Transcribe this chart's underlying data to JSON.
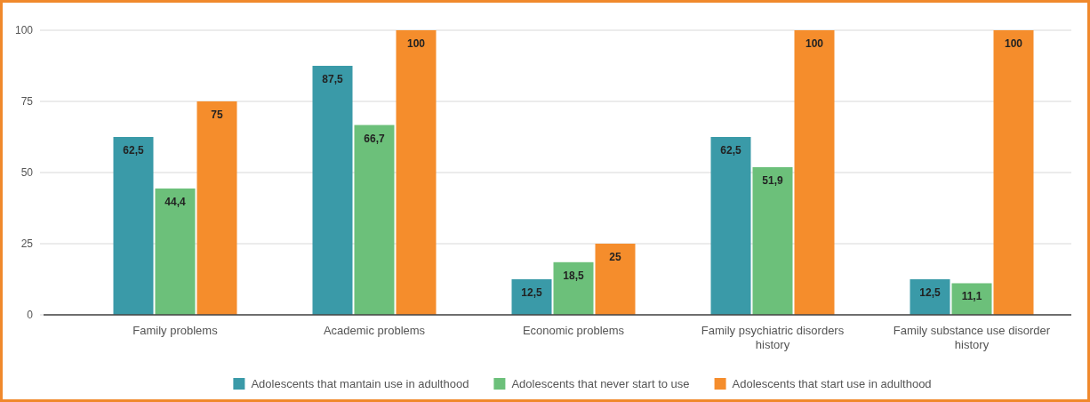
{
  "chart_data": {
    "type": "bar",
    "categories": [
      "Family problems",
      "Academic problems",
      "Economic problems",
      "Family psychiatric disorders history",
      "Family substance use disorder history"
    ],
    "series": [
      {
        "name": "Adolescents that mantain use in adulthood",
        "color": "#3a9aa8",
        "values": [
          62.5,
          87.5,
          12.5,
          62.5,
          12.5
        ],
        "value_labels": [
          "62,5",
          "87,5",
          "12,5",
          "62,5",
          "12,5"
        ]
      },
      {
        "name": "Adolescents that never start to use",
        "color": "#6cc07a",
        "values": [
          44.4,
          66.7,
          18.5,
          51.9,
          11.1
        ],
        "value_labels": [
          "44,4",
          "66,7",
          "18,5",
          "51,9",
          "11,1"
        ]
      },
      {
        "name": "Adolescents that start use in adulthood",
        "color": "#f58d2c",
        "values": [
          75,
          100,
          25,
          100,
          100
        ],
        "value_labels": [
          "75",
          "100",
          "25",
          "100",
          "100"
        ]
      }
    ],
    "ylim": [
      0,
      100
    ],
    "yticks": [
      0,
      25,
      50,
      75,
      100
    ],
    "grid": "y",
    "legend": "bottom"
  }
}
